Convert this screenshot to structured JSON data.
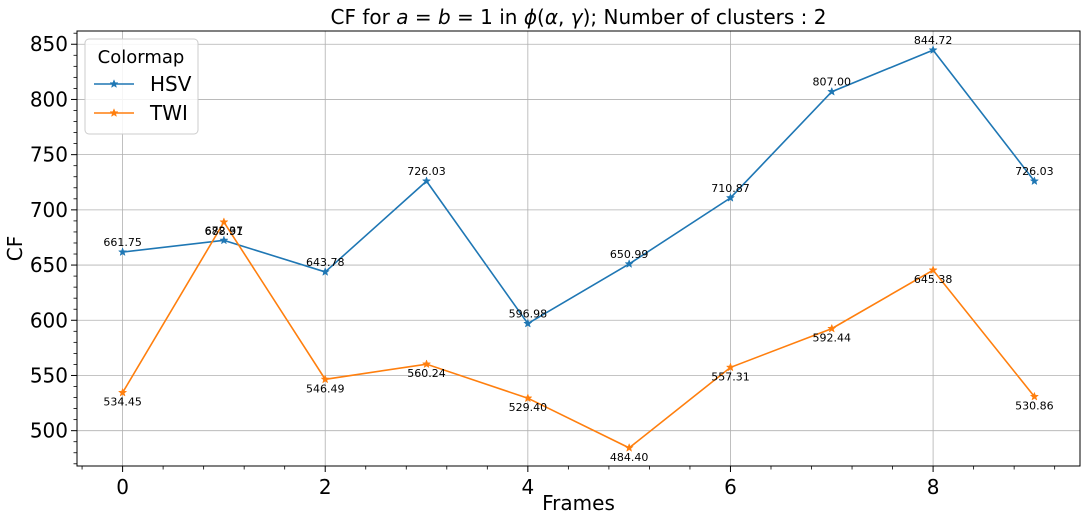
{
  "chart_data": {
    "type": "line",
    "title": "CF for a = b = 1 in ϕ(α, γ); Number of clusters : 2",
    "xlabel": "Frames",
    "ylabel": "CF",
    "x": [
      0,
      1,
      2,
      3,
      4,
      5,
      6,
      7,
      8,
      9
    ],
    "xlim": [
      -0.45,
      9.45
    ],
    "ylim": [
      468,
      862
    ],
    "xticks": [
      0,
      2,
      4,
      6,
      8
    ],
    "yticks": [
      500,
      550,
      600,
      650,
      700,
      750,
      800,
      850
    ],
    "grid": true,
    "marker": "star",
    "legend": {
      "title": "Colormap",
      "position": "upper-left"
    },
    "series": [
      {
        "name": "HSV",
        "color": "#1f77b4",
        "values": [
          661.75,
          672.37,
          643.78,
          726.03,
          596.98,
          650.99,
          710.87,
          807.0,
          844.72,
          726.03
        ],
        "labels": [
          "661.75",
          "672.37",
          "643.78",
          "726.03",
          "596.98",
          "650.99",
          "710.87",
          "807.00",
          "844.72",
          "726.03"
        ],
        "label_position": "above"
      },
      {
        "name": "TWI",
        "color": "#ff7f0e",
        "values": [
          534.45,
          688.91,
          546.49,
          560.24,
          529.4,
          484.4,
          557.31,
          592.44,
          645.38,
          530.86
        ],
        "labels": [
          "534.45",
          "688.91",
          "546.49",
          "560.24",
          "529.40",
          "484.40",
          "557.31",
          "592.44",
          "645.38",
          "530.86"
        ],
        "label_position": "below"
      }
    ]
  }
}
